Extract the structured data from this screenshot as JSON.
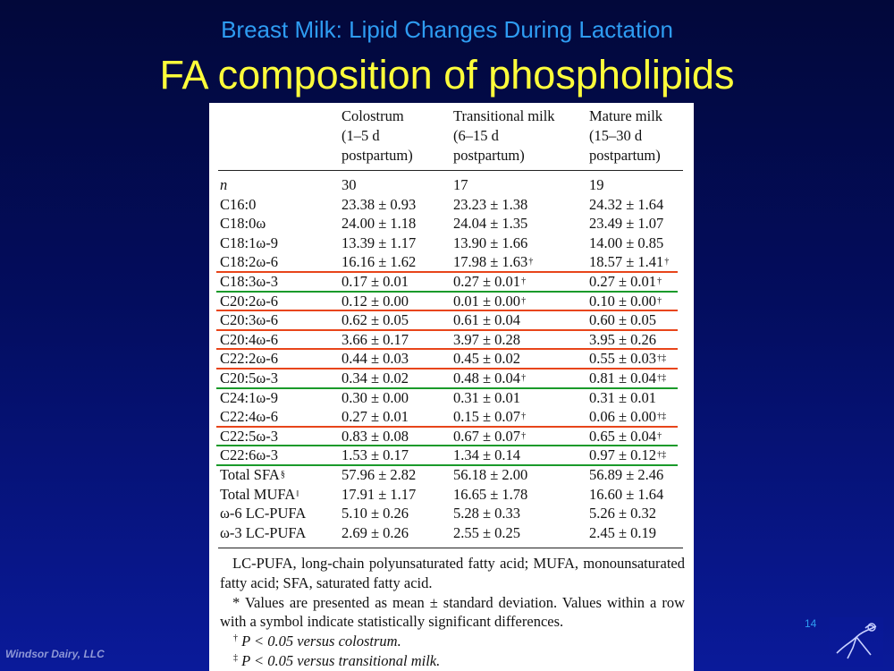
{
  "slide": {
    "subtitle": "Breast Milk: Lipid Changes During Lactation",
    "title": "FA composition of phospholipids",
    "page_number": "14",
    "company": "Windsor Dairy, LLC",
    "logo_icon": "sketch-figure-logo"
  },
  "table": {
    "headers": [
      [
        "Colostrum",
        "(1–5 d",
        "postpartum)"
      ],
      [
        "Transitional milk",
        "(6–15 d",
        "postpartum)"
      ],
      [
        "Mature milk",
        "(15–30 d",
        "postpartum)"
      ]
    ],
    "rows": [
      {
        "label": "n",
        "c1": "30",
        "c2": "17",
        "c3": "19"
      },
      {
        "label": "C16:0",
        "c1": "23.38 ± 0.93",
        "c2": "23.23 ± 1.38",
        "c3": "24.32 ± 1.64"
      },
      {
        "label": "C18:0ω",
        "c1": "24.00 ± 1.18",
        "c2": "24.04 ± 1.35",
        "c3": "23.49 ± 1.07"
      },
      {
        "label": "C18:1ω-9",
        "c1": "13.39 ± 1.17",
        "c2": "13.90 ± 1.66",
        "c3": "14.00 ± 0.85"
      },
      {
        "label": "C18:2ω-6",
        "c1": "16.16 ± 1.62",
        "c2": "17.98 ± 1.63",
        "c2m": "†",
        "c3": "18.57 ± 1.41",
        "c3m": "†"
      },
      {
        "label": "C18:3ω-3",
        "c1": "0.17 ± 0.01",
        "c2": "0.27 ± 0.01",
        "c2m": "†",
        "c3": "0.27 ± 0.01",
        "c3m": "†"
      },
      {
        "label": "C20:2ω-6",
        "c1": "0.12 ± 0.00",
        "c2": "0.01 ± 0.00",
        "c2m": "†",
        "c3": "0.10 ± 0.00",
        "c3m": "†"
      },
      {
        "label": "C20:3ω-6",
        "c1": "0.62 ± 0.05",
        "c2": "0.61 ± 0.04",
        "c3": "0.60 ± 0.05"
      },
      {
        "label": "C20:4ω-6",
        "c1": "3.66 ± 0.17",
        "c2": "3.97 ± 0.28",
        "c3": "3.95 ± 0.26"
      },
      {
        "label": "C22:2ω-6",
        "c1": "0.44 ± 0.03",
        "c2": "0.45 ± 0.02",
        "c3": "0.55 ± 0.03",
        "c3m": "†‡"
      },
      {
        "label": "C20:5ω-3",
        "c1": "0.34 ± 0.02",
        "c2": "0.48 ± 0.04",
        "c2m": "†",
        "c3": "0.81 ± 0.04",
        "c3m": "†‡"
      },
      {
        "label": "C24:1ω-9",
        "c1": "0.30 ± 0.00",
        "c2": "0.31 ± 0.01",
        "c3": "0.31 ± 0.01"
      },
      {
        "label": "C22:4ω-6",
        "c1": "0.27 ± 0.01",
        "c2": "0.15 ± 0.07",
        "c2m": "†",
        "c3": "0.06 ± 0.00",
        "c3m": "†‡"
      },
      {
        "label": "C22:5ω-3",
        "c1": "0.83 ± 0.08",
        "c2": "0.67 ± 0.07",
        "c2m": "†",
        "c3": "0.65 ± 0.04",
        "c3m": "†"
      },
      {
        "label": "C22:6ω-3",
        "c1": "1.53 ± 0.17",
        "c2": "1.34 ± 0.14",
        "c3": "0.97 ± 0.12",
        "c3m": "†‡"
      },
      {
        "label": "Total SFA",
        "label_sup": "§",
        "c1": "57.96 ± 2.82",
        "c2": "56.18 ± 2.00",
        "c3": "56.89 ± 2.46"
      },
      {
        "label": "Total MUFA",
        "label_sup": "‖",
        "c1": "17.91 ± 1.17",
        "c2": "16.65 ± 1.78",
        "c3": "16.60 ± 1.64"
      },
      {
        "label": "ω-6 LC-PUFA",
        "c1": "5.10 ± 0.26",
        "c2": "5.28 ± 0.33",
        "c3": "5.26 ± 0.32"
      },
      {
        "label": "ω-3 LC-PUFA",
        "c1": "2.69 ± 0.26",
        "c2": "2.55 ± 0.25",
        "c3": "2.45 ± 0.19"
      }
    ],
    "highlights": [
      {
        "row": 4,
        "color": "#e8451a"
      },
      {
        "row": 5,
        "color": "#1a9a2a"
      },
      {
        "row": 6,
        "color": "#e8451a"
      },
      {
        "row": 7,
        "color": "#e8451a"
      },
      {
        "row": 8,
        "color": "#e8451a"
      },
      {
        "row": 9,
        "color": "#e8451a"
      },
      {
        "row": 10,
        "color": "#1a9a2a"
      },
      {
        "row": 12,
        "color": "#e8451a"
      },
      {
        "row": 13,
        "color": "#1a9a2a"
      },
      {
        "row": 14,
        "color": "#1a9a2a"
      }
    ],
    "footnotes": {
      "abbrev": "LC-PUFA, long-chain polyunsaturated fatty acid; MUFA, monounsaturated fatty acid; SFA, saturated fatty acid.",
      "values": "* Values are presented as mean ± standard deviation. Values within a row with a symbol indicate statistically significant differences.",
      "dagger_mark": "†",
      "dagger_text": "P < 0.05 versus colostrum.",
      "ddagger_mark": "‡",
      "ddagger_text": "P < 0.05 versus transitional milk."
    }
  }
}
